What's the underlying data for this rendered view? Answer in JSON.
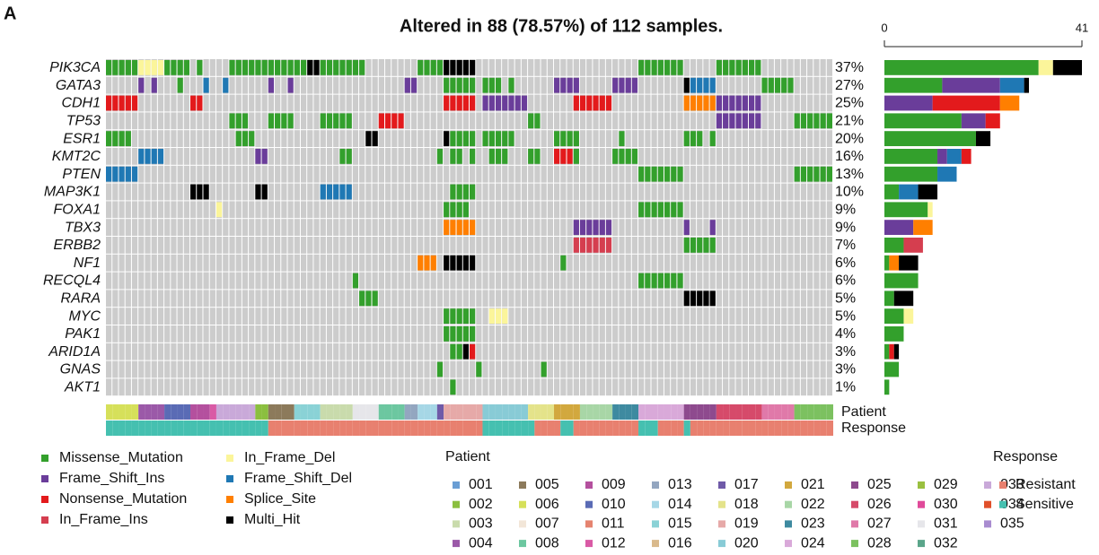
{
  "panel_label": "A",
  "chart_data": {
    "type": "oncoplot",
    "title": "Altered in 88 (78.57%) of 112 samples.",
    "samples": 112,
    "genes": [
      "PIK3CA",
      "GATA3",
      "CDH1",
      "TP53",
      "ESR1",
      "KMT2C",
      "PTEN",
      "MAP3K1",
      "FOXA1",
      "TBX3",
      "ERBB2",
      "NF1",
      "RECQL4",
      "RARA",
      "MYC",
      "PAK1",
      "ARID1A",
      "GNAS",
      "AKT1"
    ],
    "percent": {
      "values": [
        37,
        27,
        25,
        21,
        20,
        16,
        13,
        10,
        9,
        9,
        7,
        6,
        6,
        5,
        5,
        4,
        3,
        3,
        1
      ],
      "value_labels": [
        "37%",
        "27%",
        "25%",
        "21%",
        "20%",
        "16%",
        "13%",
        "10%",
        "9%",
        "9%",
        "7%",
        "6%",
        "6%",
        "5%",
        "5%",
        "4%",
        "3%",
        "3%",
        "1%"
      ]
    },
    "xlim": [
      0,
      41
    ],
    "xticks": [
      0,
      41
    ],
    "series": [
      {
        "name": "Missense_Mutation",
        "color": "#33a02c",
        "values": [
          32,
          12,
          0,
          16,
          19,
          11,
          11,
          3,
          9,
          0,
          4,
          1,
          7,
          2,
          4,
          4,
          1,
          3,
          1
        ]
      },
      {
        "name": "In_Frame_Del",
        "color": "#fbf59a",
        "values": [
          3,
          0,
          0,
          0,
          0,
          0,
          0,
          0,
          1,
          0,
          0,
          0,
          0,
          0,
          2,
          0,
          0,
          0,
          0
        ]
      },
      {
        "name": "Frame_Shift_Ins",
        "color": "#6a3d9a",
        "values": [
          0,
          12,
          10,
          5,
          0,
          2,
          0,
          0,
          0,
          6,
          0,
          0,
          0,
          0,
          0,
          0,
          0,
          0,
          0
        ]
      },
      {
        "name": "Frame_Shift_Del",
        "color": "#1f78b4",
        "values": [
          0,
          5,
          0,
          0,
          0,
          3,
          4,
          4,
          0,
          0,
          0,
          0,
          0,
          0,
          0,
          0,
          0,
          0,
          0
        ]
      },
      {
        "name": "Nonsense_Mutation",
        "color": "#e31a1c",
        "values": [
          0,
          0,
          14,
          3,
          0,
          2,
          0,
          0,
          0,
          0,
          0,
          0,
          0,
          0,
          0,
          0,
          1,
          0,
          0
        ]
      },
      {
        "name": "Splice_Site",
        "color": "#ff7f00",
        "values": [
          0,
          0,
          4,
          0,
          0,
          0,
          0,
          0,
          0,
          4,
          0,
          2,
          0,
          0,
          0,
          0,
          0,
          0,
          0
        ]
      },
      {
        "name": "In_Frame_Ins",
        "color": "#d53e4f",
        "values": [
          0,
          0,
          0,
          0,
          0,
          0,
          0,
          0,
          0,
          0,
          4,
          0,
          0,
          0,
          0,
          0,
          0,
          0,
          0
        ]
      },
      {
        "name": "Multi_Hit",
        "color": "#000000",
        "values": [
          6,
          1,
          0,
          0,
          3,
          0,
          0,
          4,
          0,
          0,
          0,
          4,
          0,
          4,
          0,
          0,
          1,
          0,
          0
        ]
      }
    ],
    "alterations": [
      [
        [
          0,
          4,
          "Missense_Mutation"
        ],
        [
          5,
          8,
          "In_Frame_Del"
        ],
        [
          9,
          12,
          "Missense_Mutation"
        ],
        [
          14,
          14,
          "Missense_Mutation"
        ],
        [
          19,
          30,
          "Missense_Mutation"
        ],
        [
          31,
          32,
          "Multi_Hit"
        ],
        [
          33,
          39,
          "Missense_Mutation"
        ],
        [
          48,
          51,
          "Missense_Mutation"
        ],
        [
          52,
          56,
          "Multi_Hit"
        ],
        [
          82,
          88,
          "Missense_Mutation"
        ],
        [
          94,
          100,
          "Missense_Mutation"
        ]
      ],
      [
        [
          5,
          5,
          "Frame_Shift_Ins"
        ],
        [
          7,
          7,
          "Frame_Shift_Ins"
        ],
        [
          11,
          11,
          "Missense_Mutation"
        ],
        [
          15,
          15,
          "Frame_Shift_Del"
        ],
        [
          18,
          18,
          "Frame_Shift_Del"
        ],
        [
          25,
          25,
          "Frame_Shift_Ins"
        ],
        [
          28,
          28,
          "Frame_Shift_Ins"
        ],
        [
          46,
          47,
          "Frame_Shift_Ins"
        ],
        [
          52,
          56,
          "Missense_Mutation"
        ],
        [
          58,
          60,
          "Missense_Mutation"
        ],
        [
          62,
          62,
          "Missense_Mutation"
        ],
        [
          69,
          72,
          "Frame_Shift_Ins"
        ],
        [
          78,
          81,
          "Frame_Shift_Ins"
        ],
        [
          89,
          89,
          "Multi_Hit"
        ],
        [
          90,
          93,
          "Frame_Shift_Del"
        ],
        [
          101,
          105,
          "Missense_Mutation"
        ]
      ],
      [
        [
          0,
          4,
          "Nonsense_Mutation"
        ],
        [
          13,
          14,
          "Nonsense_Mutation"
        ],
        [
          52,
          56,
          "Nonsense_Mutation"
        ],
        [
          58,
          64,
          "Frame_Shift_Ins"
        ],
        [
          72,
          77,
          "Nonsense_Mutation"
        ],
        [
          89,
          93,
          "Splice_Site"
        ],
        [
          94,
          100,
          "Frame_Shift_Ins"
        ]
      ],
      [
        [
          19,
          21,
          "Missense_Mutation"
        ],
        [
          25,
          28,
          "Missense_Mutation"
        ],
        [
          33,
          37,
          "Missense_Mutation"
        ],
        [
          42,
          45,
          "Nonsense_Mutation"
        ],
        [
          65,
          66,
          "Missense_Mutation"
        ],
        [
          94,
          100,
          "Frame_Shift_Ins"
        ],
        [
          106,
          111,
          "Missense_Mutation"
        ]
      ],
      [
        [
          0,
          3,
          "Missense_Mutation"
        ],
        [
          20,
          22,
          "Missense_Mutation"
        ],
        [
          40,
          41,
          "Multi_Hit"
        ],
        [
          52,
          52,
          "Multi_Hit"
        ],
        [
          53,
          56,
          "Missense_Mutation"
        ],
        [
          58,
          62,
          "Missense_Mutation"
        ],
        [
          69,
          72,
          "Missense_Mutation"
        ],
        [
          79,
          79,
          "Missense_Mutation"
        ],
        [
          89,
          91,
          "Missense_Mutation"
        ],
        [
          93,
          93,
          "Missense_Mutation"
        ]
      ],
      [
        [
          5,
          8,
          "Frame_Shift_Del"
        ],
        [
          23,
          24,
          "Frame_Shift_Ins"
        ],
        [
          36,
          37,
          "Missense_Mutation"
        ],
        [
          51,
          51,
          "Missense_Mutation"
        ],
        [
          53,
          54,
          "Missense_Mutation"
        ],
        [
          56,
          56,
          "Missense_Mutation"
        ],
        [
          59,
          61,
          "Missense_Mutation"
        ],
        [
          65,
          66,
          "Missense_Mutation"
        ],
        [
          69,
          71,
          "Nonsense_Mutation"
        ],
        [
          72,
          72,
          "Missense_Mutation"
        ],
        [
          78,
          81,
          "Missense_Mutation"
        ]
      ],
      [
        [
          0,
          4,
          "Frame_Shift_Del"
        ],
        [
          82,
          88,
          "Missense_Mutation"
        ],
        [
          106,
          111,
          "Missense_Mutation"
        ]
      ],
      [
        [
          13,
          15,
          "Multi_Hit"
        ],
        [
          23,
          24,
          "Multi_Hit"
        ],
        [
          33,
          37,
          "Frame_Shift_Del"
        ],
        [
          53,
          56,
          "Missense_Mutation"
        ]
      ],
      [
        [
          17,
          17,
          "In_Frame_Del"
        ],
        [
          52,
          55,
          "Missense_Mutation"
        ],
        [
          82,
          88,
          "Missense_Mutation"
        ]
      ],
      [
        [
          52,
          56,
          "Splice_Site"
        ],
        [
          72,
          77,
          "Frame_Shift_Ins"
        ],
        [
          89,
          89,
          "Frame_Shift_Ins"
        ],
        [
          93,
          93,
          "Frame_Shift_Ins"
        ]
      ],
      [
        [
          72,
          77,
          "In_Frame_Ins"
        ],
        [
          89,
          93,
          "Missense_Mutation"
        ]
      ],
      [
        [
          48,
          50,
          "Splice_Site"
        ],
        [
          52,
          56,
          "Multi_Hit"
        ],
        [
          70,
          70,
          "Missense_Mutation"
        ]
      ],
      [
        [
          38,
          38,
          "Missense_Mutation"
        ],
        [
          82,
          88,
          "Missense_Mutation"
        ]
      ],
      [
        [
          39,
          41,
          "Missense_Mutation"
        ],
        [
          89,
          93,
          "Multi_Hit"
        ]
      ],
      [
        [
          52,
          56,
          "Missense_Mutation"
        ],
        [
          59,
          61,
          "In_Frame_Del"
        ]
      ],
      [
        [
          52,
          56,
          "Missense_Mutation"
        ]
      ],
      [
        [
          53,
          54,
          "Missense_Mutation"
        ],
        [
          55,
          55,
          "Multi_Hit"
        ],
        [
          56,
          56,
          "Nonsense_Mutation"
        ]
      ],
      [
        [
          51,
          51,
          "Missense_Mutation"
        ],
        [
          57,
          57,
          "Missense_Mutation"
        ],
        [
          67,
          67,
          "Missense_Mutation"
        ]
      ],
      [
        [
          53,
          53,
          "Missense_Mutation"
        ]
      ]
    ],
    "tracks": [
      {
        "name": "Patient",
        "runs": [
          [
            0,
            4,
            "006"
          ],
          [
            5,
            8,
            "004"
          ],
          [
            9,
            12,
            "010"
          ],
          [
            13,
            15,
            "009"
          ],
          [
            16,
            16,
            "012"
          ],
          [
            17,
            22,
            "033"
          ],
          [
            23,
            24,
            "002"
          ],
          [
            25,
            28,
            "005"
          ],
          [
            29,
            32,
            "015"
          ],
          [
            33,
            37,
            "003"
          ],
          [
            38,
            41,
            "031"
          ],
          [
            42,
            45,
            "008"
          ],
          [
            46,
            47,
            "013"
          ],
          [
            48,
            50,
            "014"
          ],
          [
            51,
            51,
            "017"
          ],
          [
            52,
            57,
            "019"
          ],
          [
            58,
            64,
            "020"
          ],
          [
            65,
            68,
            "018"
          ],
          [
            69,
            72,
            "021"
          ],
          [
            73,
            77,
            "022"
          ],
          [
            78,
            81,
            "023"
          ],
          [
            82,
            88,
            "024"
          ],
          [
            89,
            93,
            "025"
          ],
          [
            94,
            100,
            "026"
          ],
          [
            101,
            105,
            "027"
          ],
          [
            106,
            111,
            "028"
          ]
        ]
      },
      {
        "name": "Response",
        "runs": [
          [
            0,
            24,
            "Sensitive"
          ],
          [
            25,
            57,
            "Resistant"
          ],
          [
            58,
            65,
            "Sensitive"
          ],
          [
            66,
            69,
            "Resistant"
          ],
          [
            70,
            71,
            "Sensitive"
          ],
          [
            72,
            81,
            "Resistant"
          ],
          [
            82,
            84,
            "Sensitive"
          ],
          [
            85,
            88,
            "Resistant"
          ],
          [
            89,
            89,
            "Sensitive"
          ],
          [
            90,
            111,
            "Resistant"
          ]
        ]
      }
    ],
    "patient_legend": {
      "title": "Patient",
      "items": [
        {
          "name": "001",
          "color": "#6a9ed4"
        },
        {
          "name": "002",
          "color": "#8bbf3f"
        },
        {
          "name": "003",
          "color": "#c9dbac"
        },
        {
          "name": "004",
          "color": "#9b59a8"
        },
        {
          "name": "005",
          "color": "#8c7a5b"
        },
        {
          "name": "006",
          "color": "#d6e05a"
        },
        {
          "name": "007",
          "color": "#f2e6d8"
        },
        {
          "name": "008",
          "color": "#6cc7a0"
        },
        {
          "name": "009",
          "color": "#b4509e"
        },
        {
          "name": "010",
          "color": "#5a6bb5"
        },
        {
          "name": "011",
          "color": "#e5836f"
        },
        {
          "name": "012",
          "color": "#d95aa5"
        },
        {
          "name": "013",
          "color": "#93a6c0"
        },
        {
          "name": "014",
          "color": "#a6d7e6"
        },
        {
          "name": "015",
          "color": "#8ad2d6"
        },
        {
          "name": "016",
          "color": "#d9b98c"
        },
        {
          "name": "017",
          "color": "#6f5aa8"
        },
        {
          "name": "018",
          "color": "#e4e38a"
        },
        {
          "name": "019",
          "color": "#e6a9a8"
        },
        {
          "name": "020",
          "color": "#88cbd6"
        },
        {
          "name": "021",
          "color": "#d2a83e"
        },
        {
          "name": "022",
          "color": "#a8d6a6"
        },
        {
          "name": "023",
          "color": "#3e8aa0"
        },
        {
          "name": "024",
          "color": "#d9a9d9"
        },
        {
          "name": "025",
          "color": "#8e4a8e"
        },
        {
          "name": "026",
          "color": "#d64a6a"
        },
        {
          "name": "027",
          "color": "#e079a9"
        },
        {
          "name": "028",
          "color": "#7cc160"
        },
        {
          "name": "029",
          "color": "#9ac040"
        },
        {
          "name": "030",
          "color": "#e04a9a"
        },
        {
          "name": "031",
          "color": "#e6e6ea"
        },
        {
          "name": "032",
          "color": "#5aa58a"
        },
        {
          "name": "033",
          "color": "#c9a9d9"
        },
        {
          "name": "034",
          "color": "#e0502a"
        },
        {
          "name": "035",
          "color": "#a98cd0"
        }
      ]
    },
    "response_legend": {
      "title": "Response",
      "items": [
        {
          "name": "Resistant",
          "color": "#e8806f"
        },
        {
          "name": "Sensitive",
          "color": "#45c0b0"
        }
      ]
    }
  }
}
